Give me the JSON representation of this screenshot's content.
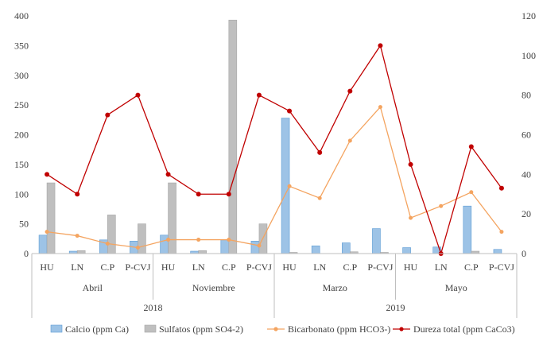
{
  "chart_data": {
    "type": "bar",
    "categories": [
      "HU",
      "LN",
      "C.P",
      "P-CVJ",
      "HU",
      "LN",
      "C.P",
      "P-CVJ",
      "HU",
      "LN",
      "C.P",
      "P-CVJ",
      "HU",
      "LN",
      "C.P",
      "P-CVJ"
    ],
    "month_groups": [
      {
        "label": "Abril",
        "count": 4
      },
      {
        "label": "Noviembre",
        "count": 4
      },
      {
        "label": "Marzo",
        "count": 4
      },
      {
        "label": "Mayo",
        "count": 4
      }
    ],
    "year_groups": [
      {
        "label": "2018",
        "count": 8
      },
      {
        "label": "2019",
        "count": 8
      }
    ],
    "series": [
      {
        "name": "Calcio (ppm Ca)",
        "type": "bar",
        "axis": "left",
        "color": "#9DC3E6",
        "values": [
          31,
          4,
          23,
          21,
          31,
          4,
          23,
          21,
          228,
          13,
          18,
          42,
          10,
          11,
          80,
          7
        ]
      },
      {
        "name": "Sulfatos (ppm SO4-2)",
        "type": "bar",
        "axis": "left",
        "color": "#BFBFBF",
        "values": [
          119,
          5,
          65,
          50,
          119,
          5,
          393,
          50,
          2,
          0,
          3,
          2,
          0,
          0,
          4,
          0
        ]
      },
      {
        "name": "Bicarbonato (ppm HCO3-)",
        "type": "line",
        "axis": "right",
        "color": "#F4A460",
        "values": [
          11,
          9,
          5,
          3,
          7,
          7,
          7,
          4,
          34,
          28,
          57,
          74,
          18,
          24,
          31,
          11
        ]
      },
      {
        "name": "Dureza total (ppm CaCo3)",
        "type": "line",
        "axis": "right",
        "color": "#C00000",
        "values": [
          40,
          30,
          70,
          80,
          40,
          30,
          30,
          80,
          72,
          51,
          82,
          105,
          45,
          0,
          54,
          33
        ]
      }
    ],
    "y_left": {
      "min": 0,
      "max": 400,
      "ticks": [
        0,
        50,
        100,
        150,
        200,
        250,
        300,
        350,
        400
      ]
    },
    "y_right": {
      "min": 0,
      "max": 120,
      "ticks": [
        0,
        20,
        40,
        60,
        80,
        100,
        120
      ]
    },
    "grid": false,
    "legend_position": "bottom"
  }
}
